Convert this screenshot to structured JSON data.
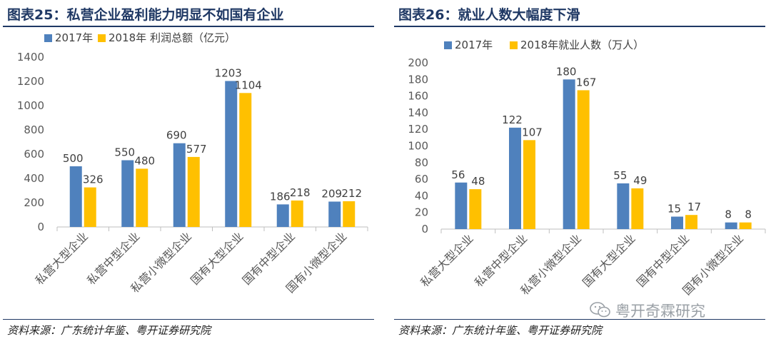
{
  "colors": {
    "series2017": "#4f81bd",
    "series2018": "#ffc000",
    "title": "#1f3864",
    "axis": "#595959",
    "grid": "#d9d9d9"
  },
  "chart_data": [
    {
      "type": "bar",
      "title": "图表25：私营企业盈利能力明显不如国有企业",
      "categories": [
        "私营大型企业",
        "私营中型企业",
        "私营小微型企业",
        "国有大型企业",
        "国有中型企业",
        "国有小微型企业"
      ],
      "series": [
        {
          "name": "2017年",
          "values": [
            500,
            550,
            690,
            1203,
            186,
            209
          ]
        },
        {
          "name": "2018年 利润总额（亿元）",
          "values": [
            326,
            480,
            577,
            1104,
            218,
            212
          ]
        }
      ],
      "ylim": [
        0,
        1400
      ],
      "yticks": [
        0,
        200,
        400,
        600,
        800,
        1000,
        1200,
        1400
      ],
      "xlabel": "",
      "ylabel": "",
      "grid": false,
      "legend": "top-left",
      "source": "资料来源：广东统计年鉴、粤开证券研究院"
    },
    {
      "type": "bar",
      "title": "图表26：就业人数大幅度下滑",
      "categories": [
        "私营大型企业",
        "私营中型企业",
        "私营小微型企业",
        "国有大型企业",
        "国有中型企业",
        "国有小微型企业"
      ],
      "series": [
        {
          "name": "2017年",
          "values": [
            56,
            122,
            180,
            55,
            15,
            8
          ]
        },
        {
          "name": "2018年就业人数（万人）",
          "values": [
            48,
            107,
            167,
            49,
            17,
            8
          ]
        }
      ],
      "ylim": [
        0,
        200
      ],
      "yticks": [
        0,
        20,
        40,
        60,
        80,
        100,
        120,
        140,
        160,
        180,
        200
      ],
      "xlabel": "",
      "ylabel": "",
      "grid": false,
      "legend": "top-center",
      "source": "资料来源：广东统计年鉴、粤开证券研究院"
    }
  ],
  "watermark": {
    "text": "粤开奇霖研究",
    "icon": "wechat-icon"
  }
}
